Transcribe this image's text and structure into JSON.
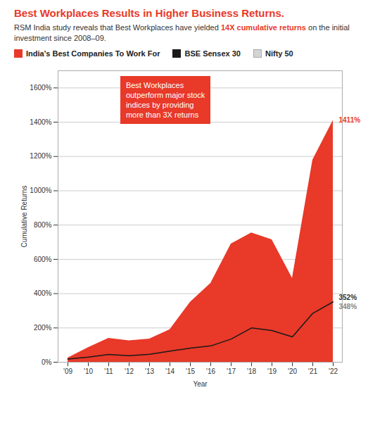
{
  "chart_data": {
    "type": "area",
    "title": "Best Workplaces Results in Higher Business Returns.",
    "subtitle": "RSM India study reveals that Best Workplaces have yielded 14X cumulative returns on the initial investment since 2008–09.",
    "subtitle_highlight": "14X cumulative returns",
    "xlabel": "Year",
    "ylabel": "Cumulative Returns",
    "categories": [
      "'09",
      "'10",
      "'11",
      "'12",
      "'13",
      "'14",
      "'15",
      "'16",
      "'17",
      "'18",
      "'19",
      "'20",
      "'21",
      "'22"
    ],
    "series": [
      {
        "name": "India's Best Companies To Work For",
        "color": "#E83929",
        "type": "area",
        "values": [
          25,
          85,
          140,
          125,
          135,
          190,
          350,
          460,
          690,
          755,
          715,
          490,
          1180,
          1411
        ]
      },
      {
        "name": "BSE Sensex 30",
        "color": "#1a1a1a",
        "type": "line",
        "values": [
          18,
          30,
          45,
          38,
          46,
          65,
          82,
          95,
          135,
          200,
          185,
          148,
          285,
          352
        ]
      },
      {
        "name": "Nifty 50",
        "color": "#d4d4d4",
        "type": "area",
        "values": [
          16,
          28,
          42,
          35,
          43,
          61,
          78,
          90,
          128,
          182,
          172,
          135,
          268,
          348
        ]
      }
    ],
    "ylim": [
      0,
      1700
    ],
    "yticks": [
      {
        "value": 0,
        "label": "0%"
      },
      {
        "value": 200,
        "label": "200%"
      },
      {
        "value": 400,
        "label": "400%"
      },
      {
        "value": 600,
        "label": "600%"
      },
      {
        "value": 800,
        "label": "800%"
      },
      {
        "value": 1000,
        "label": "1000%"
      },
      {
        "value": 1200,
        "label": "1200%"
      },
      {
        "value": 1400,
        "label": "1400%"
      },
      {
        "value": 1600,
        "label": "1600%"
      }
    ],
    "grid": true,
    "legend": "top left",
    "annotations": [
      {
        "text": "Best Workplaces\noutperform major stock\nindices by providing\nmore than 3X returns",
        "color": "#E83929"
      },
      {
        "text": "1411%",
        "x": "'22",
        "y": 1411,
        "color": "#E83929"
      },
      {
        "text": "352%",
        "x": "'22",
        "y": 352,
        "color": "#333333"
      },
      {
        "text": "348%",
        "x": "'22",
        "y": 348,
        "color": "#888888"
      }
    ]
  }
}
